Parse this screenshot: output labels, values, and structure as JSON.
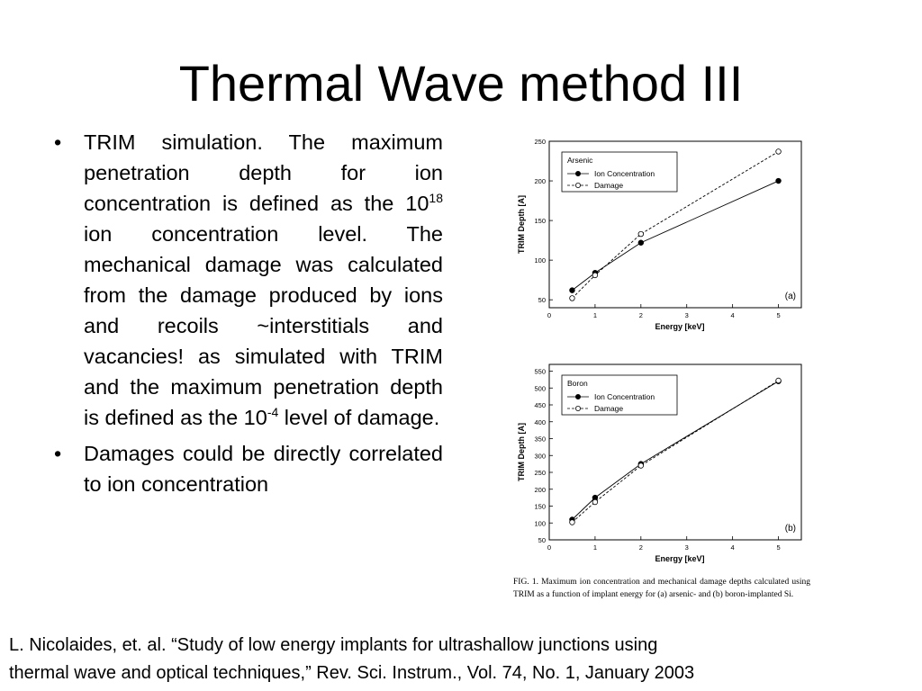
{
  "slide": {
    "title": "Thermal Wave method III",
    "bullets": [
      {
        "parts": [
          {
            "text": "TRIM simulation. The maximum penetration depth for ion concentration is defined as the 10"
          },
          {
            "sup": "18"
          },
          {
            "text": " ion concentration level. The mechanical damage was calculated from the damage produced by ions and recoils ~interstitials and vacancies! as simulated with TRIM and the maximum penetration depth is defined as the 10"
          },
          {
            "sup": "-4"
          },
          {
            "text": " level of damage."
          }
        ]
      },
      {
        "parts": [
          {
            "text": "Damages could be directly correlated to ion concentration"
          }
        ]
      }
    ],
    "bullet_glyph": "•",
    "citation_line1": "L. Nicolaides, et. al. “Study of low energy implants for ultrashallow junctions using",
    "citation_line2": "thermal wave and optical techniques,” Rev. Sci. Instrum., Vol. 74, No. 1, January 2003"
  },
  "figure": {
    "caption": "FIG. 1. Maximum ion concentration and mechanical damage depths calculated using TRIM as a function of implant energy for (a) arsenic- and (b) boron-implanted Si."
  },
  "chart_data": [
    {
      "type": "line",
      "panel_label": "(a)",
      "legend_title": "Arsenic",
      "legend_position": "top-left",
      "xlabel": "Energy [keV]",
      "ylabel": "TRIM Depth [A]",
      "xlim": [
        0,
        5.5
      ],
      "ylim": [
        40,
        250
      ],
      "xticks": [
        0,
        1,
        2,
        3,
        4,
        5
      ],
      "yticks": [
        50,
        100,
        150,
        200,
        250
      ],
      "series": [
        {
          "name": "Ion Concentration",
          "marker": "filled-circle",
          "dash": "solid",
          "x": [
            0.5,
            1,
            2,
            5
          ],
          "y": [
            62,
            84,
            122,
            200
          ]
        },
        {
          "name": "Damage",
          "marker": "open-circle",
          "dash": "dashed",
          "x": [
            0.5,
            1,
            2,
            5
          ],
          "y": [
            52,
            81,
            133,
            237
          ]
        }
      ]
    },
    {
      "type": "line",
      "panel_label": "(b)",
      "legend_title": "Boron",
      "legend_position": "top-left",
      "xlabel": "Energy [keV]",
      "ylabel": "TRIM Depth [A]",
      "xlim": [
        0,
        5.5
      ],
      "ylim": [
        50,
        570
      ],
      "xticks": [
        0,
        1,
        2,
        3,
        4,
        5
      ],
      "yticks": [
        50,
        100,
        150,
        200,
        250,
        300,
        350,
        400,
        450,
        500,
        550
      ],
      "series": [
        {
          "name": "Ion Concentration",
          "marker": "filled-circle",
          "dash": "solid",
          "x": [
            0.5,
            1,
            2,
            5
          ],
          "y": [
            110,
            175,
            275,
            520
          ]
        },
        {
          "name": "Damage",
          "marker": "open-circle",
          "dash": "dashed",
          "x": [
            0.5,
            1,
            2,
            5
          ],
          "y": [
            102,
            162,
            270,
            522
          ]
        }
      ]
    }
  ]
}
